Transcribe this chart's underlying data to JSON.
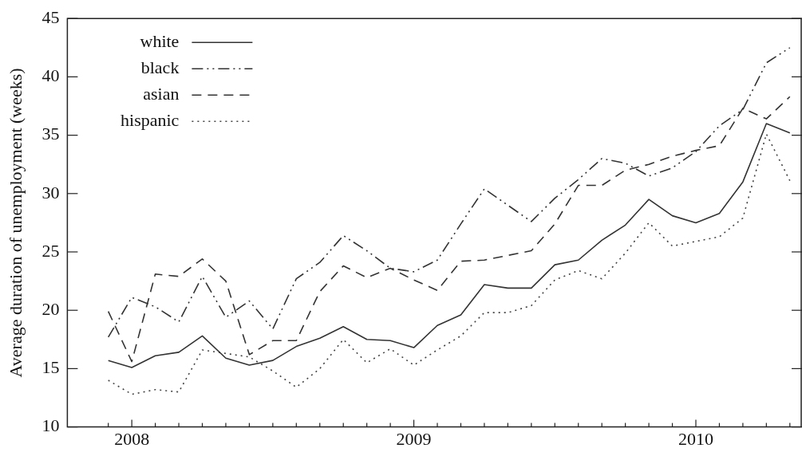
{
  "chart_data": {
    "type": "line",
    "ylabel": "Average duration of unemployment (weeks)",
    "x": [
      "2007-12",
      "2008-01",
      "2008-02",
      "2008-03",
      "2008-04",
      "2008-05",
      "2008-06",
      "2008-07",
      "2008-08",
      "2008-09",
      "2008-10",
      "2008-11",
      "2008-12",
      "2009-01",
      "2009-02",
      "2009-03",
      "2009-04",
      "2009-05",
      "2009-06",
      "2009-07",
      "2009-08",
      "2009-09",
      "2009-10",
      "2009-11",
      "2009-12",
      "2010-01",
      "2010-02",
      "2010-03",
      "2010-04",
      "2010-05"
    ],
    "series": [
      {
        "name": "white",
        "color": "#333333",
        "line_style": "solid",
        "values": [
          15.7,
          15.1,
          16.1,
          16.4,
          17.8,
          15.9,
          15.3,
          15.7,
          16.9,
          17.6,
          18.6,
          17.5,
          17.4,
          16.8,
          18.7,
          19.6,
          22.2,
          21.9,
          21.9,
          23.9,
          24.3,
          26.0,
          27.3,
          29.5,
          28.1,
          27.5,
          28.3,
          31.0,
          36.0,
          35.2
        ]
      },
      {
        "name": "black",
        "color": "#333333",
        "line_style": "dashdot",
        "values": [
          17.7,
          21.1,
          20.3,
          19.0,
          22.9,
          19.4,
          20.8,
          18.4,
          22.7,
          24.1,
          26.4,
          25.1,
          23.6,
          23.3,
          24.3,
          27.4,
          30.4,
          29.0,
          27.6,
          29.6,
          31.2,
          33.0,
          32.6,
          31.5,
          32.2,
          33.6,
          35.8,
          37.2,
          41.2,
          42.5
        ]
      },
      {
        "name": "asian",
        "color": "#333333",
        "line_style": "dashed",
        "values": [
          19.9,
          15.6,
          23.1,
          22.9,
          24.4,
          22.5,
          16.2,
          17.4,
          17.4,
          21.6,
          23.8,
          22.8,
          23.6,
          22.6,
          21.7,
          24.2,
          24.3,
          24.7,
          25.1,
          27.4,
          30.7,
          30.7,
          32.0,
          32.5,
          33.2,
          33.7,
          34.1,
          37.3,
          36.4,
          38.3
        ]
      },
      {
        "name": "hispanic",
        "color": "#444444",
        "line_style": "dotted",
        "values": [
          14.0,
          12.8,
          13.2,
          13.0,
          16.6,
          16.3,
          16.0,
          14.8,
          13.4,
          15.0,
          17.5,
          15.5,
          16.7,
          15.3,
          16.6,
          17.8,
          19.8,
          19.8,
          20.4,
          22.6,
          23.4,
          22.7,
          24.9,
          27.5,
          25.5,
          25.9,
          26.3,
          27.9,
          35.1,
          31.1
        ]
      }
    ],
    "xlim": [
      "2007-10-09",
      "2010-05-17"
    ],
    "xticks": [
      {
        "value": "2007-12",
        "label": null
      },
      {
        "value": "2008",
        "label": "2008"
      },
      {
        "value": "2008-02",
        "label": null
      },
      {
        "value": "2008-03",
        "label": null
      },
      {
        "value": "2008-04",
        "label": null
      },
      {
        "value": "2008-05",
        "label": null
      },
      {
        "value": "2008-06",
        "label": null
      },
      {
        "value": "2008-07",
        "label": null
      },
      {
        "value": "2008-08",
        "label": null
      },
      {
        "value": "2008-09",
        "label": null
      },
      {
        "value": "2008-10",
        "label": null
      },
      {
        "value": "2008-11",
        "label": null
      },
      {
        "value": "2008-12",
        "label": null
      },
      {
        "value": "2009",
        "label": "2009"
      },
      {
        "value": "2009-02",
        "label": null
      },
      {
        "value": "2009-03",
        "label": null
      },
      {
        "value": "2009-04",
        "label": null
      },
      {
        "value": "2009-05",
        "label": null
      },
      {
        "value": "2009-06",
        "label": null
      },
      {
        "value": "2009-07",
        "label": null
      },
      {
        "value": "2009-08",
        "label": null
      },
      {
        "value": "2009-09",
        "label": null
      },
      {
        "value": "2009-10",
        "label": null
      },
      {
        "value": "2009-11",
        "label": null
      },
      {
        "value": "2009-12",
        "label": null
      },
      {
        "value": "2010",
        "label": "2010"
      },
      {
        "value": "2010-02",
        "label": null
      },
      {
        "value": "2010-03",
        "label": null
      },
      {
        "value": "2010-04",
        "label": null
      },
      {
        "value": "2010-05",
        "label": null
      }
    ],
    "ylim": [
      10,
      45
    ],
    "yticks": [
      10,
      15,
      20,
      25,
      30,
      35,
      40,
      45
    ],
    "grid": false,
    "legend": "top left",
    "marker": "none"
  }
}
